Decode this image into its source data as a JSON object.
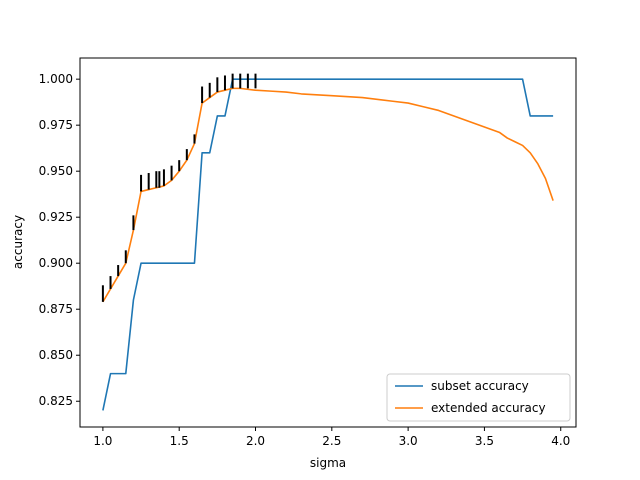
{
  "chart_data": {
    "type": "line",
    "xlabel": "sigma",
    "ylabel": "accuracy",
    "xlim": [
      0.85,
      4.1
    ],
    "ylim": [
      0.811,
      1.0115
    ],
    "xticks": [
      1.0,
      1.5,
      2.0,
      2.5,
      3.0,
      3.5,
      4.0
    ],
    "xtick_labels": [
      "1.0",
      "1.5",
      "2.0",
      "2.5",
      "3.0",
      "3.5",
      "4.0"
    ],
    "yticks": [
      0.825,
      0.85,
      0.875,
      0.9,
      0.925,
      0.95,
      0.975,
      1.0
    ],
    "ytick_labels": [
      "0.825",
      "0.850",
      "0.875",
      "0.900",
      "0.925",
      "0.950",
      "0.975",
      "1.000"
    ],
    "grid": false,
    "legend": "lower-right",
    "series": [
      {
        "name": "subset accuracy",
        "color": "#1f77b4",
        "points": [
          [
            1.0,
            0.82
          ],
          [
            1.05,
            0.84
          ],
          [
            1.15,
            0.84
          ],
          [
            1.2,
            0.88
          ],
          [
            1.25,
            0.9
          ],
          [
            1.6,
            0.9
          ],
          [
            1.65,
            0.96
          ],
          [
            1.7,
            0.96
          ],
          [
            1.75,
            0.98
          ],
          [
            1.8,
            0.98
          ],
          [
            1.85,
            1.0
          ],
          [
            3.75,
            1.0
          ],
          [
            3.8,
            0.98
          ],
          [
            3.95,
            0.98
          ]
        ]
      },
      {
        "name": "extended accuracy",
        "color": "#ff7f0e",
        "points": [
          [
            1.0,
            0.879
          ],
          [
            1.05,
            0.886
          ],
          [
            1.1,
            0.893
          ],
          [
            1.15,
            0.9
          ],
          [
            1.2,
            0.918
          ],
          [
            1.25,
            0.939
          ],
          [
            1.3,
            0.94
          ],
          [
            1.35,
            0.941
          ],
          [
            1.4,
            0.942
          ],
          [
            1.45,
            0.945
          ],
          [
            1.5,
            0.95
          ],
          [
            1.55,
            0.956
          ],
          [
            1.6,
            0.965
          ],
          [
            1.65,
            0.987
          ],
          [
            1.7,
            0.99
          ],
          [
            1.75,
            0.993
          ],
          [
            1.8,
            0.994
          ],
          [
            1.85,
            0.995
          ],
          [
            1.9,
            0.995
          ],
          [
            2.0,
            0.994
          ],
          [
            2.1,
            0.9935
          ],
          [
            2.2,
            0.993
          ],
          [
            2.3,
            0.992
          ],
          [
            2.5,
            0.991
          ],
          [
            2.7,
            0.99
          ],
          [
            2.9,
            0.988
          ],
          [
            3.0,
            0.987
          ],
          [
            3.1,
            0.985
          ],
          [
            3.2,
            0.983
          ],
          [
            3.3,
            0.98
          ],
          [
            3.4,
            0.977
          ],
          [
            3.5,
            0.974
          ],
          [
            3.6,
            0.971
          ],
          [
            3.65,
            0.968
          ],
          [
            3.7,
            0.966
          ],
          [
            3.75,
            0.964
          ],
          [
            3.8,
            0.96
          ],
          [
            3.85,
            0.954
          ],
          [
            3.9,
            0.946
          ],
          [
            3.95,
            0.934
          ]
        ]
      }
    ],
    "error_bars": {
      "color": "#000000",
      "segments": [
        [
          1.0,
          0.879,
          0.888
        ],
        [
          1.05,
          0.886,
          0.893
        ],
        [
          1.1,
          0.893,
          0.899
        ],
        [
          1.15,
          0.9,
          0.907
        ],
        [
          1.2,
          0.918,
          0.926
        ],
        [
          1.25,
          0.939,
          0.948
        ],
        [
          1.3,
          0.94,
          0.949
        ],
        [
          1.35,
          0.941,
          0.95
        ],
        [
          1.37,
          0.941,
          0.95
        ],
        [
          1.4,
          0.942,
          0.951
        ],
        [
          1.45,
          0.945,
          0.953
        ],
        [
          1.5,
          0.95,
          0.956
        ],
        [
          1.55,
          0.956,
          0.962
        ],
        [
          1.6,
          0.965,
          0.97
        ],
        [
          1.65,
          0.987,
          0.996
        ],
        [
          1.7,
          0.99,
          0.998
        ],
        [
          1.75,
          0.993,
          1.001
        ],
        [
          1.8,
          0.994,
          1.002
        ],
        [
          1.85,
          0.995,
          1.003
        ],
        [
          1.9,
          0.995,
          1.003
        ],
        [
          1.95,
          0.995,
          1.003
        ],
        [
          2.0,
          0.995,
          1.003
        ]
      ]
    }
  }
}
